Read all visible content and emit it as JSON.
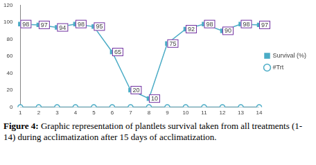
{
  "chart_data": {
    "type": "line",
    "categories": [
      "1",
      "2",
      "3",
      "4",
      "5",
      "6",
      "7",
      "8",
      "9",
      "10",
      "11",
      "12",
      "13",
      "14"
    ],
    "series": [
      {
        "name": "Survival (%)",
        "color": "#4bacc6",
        "marker": "square",
        "data_labels": true,
        "values": [
          98,
          97,
          94,
          98,
          95,
          65,
          20,
          10,
          75,
          92,
          98,
          90,
          98,
          97
        ]
      },
      {
        "name": "#Trt",
        "color": "#4bacc6",
        "marker": "circle",
        "values": [
          0,
          0,
          0,
          0,
          0,
          0,
          0,
          0,
          0,
          0,
          0,
          0,
          0,
          0
        ]
      }
    ],
    "ylim": [
      0,
      120
    ],
    "yticks": [
      0,
      20,
      40,
      60,
      80,
      100,
      120
    ],
    "grid": false,
    "legend": "right"
  },
  "caption_label": "Figure 4:",
  "caption": "Graphic representation of plantlets survival taken from all treatments (1-14) during acclimatization after 15 days of acclimatization."
}
